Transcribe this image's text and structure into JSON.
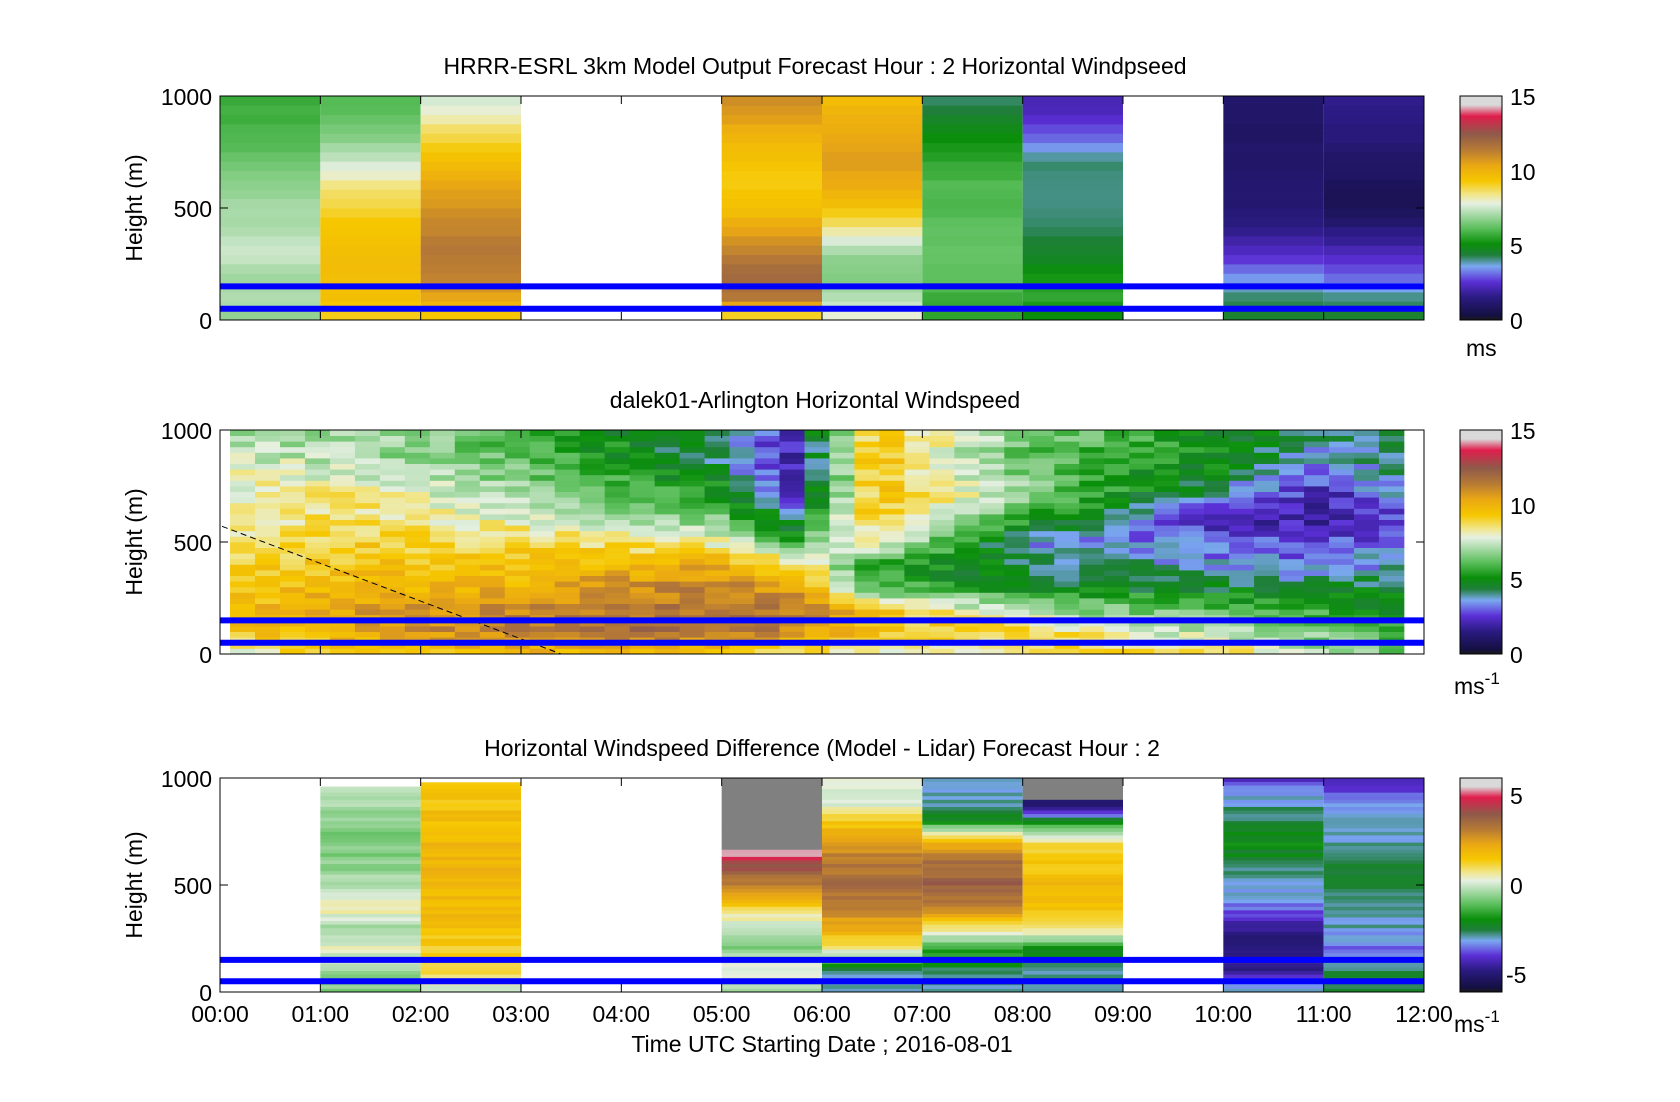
{
  "figure": {
    "xlabel": "Time UTC  Starting Date ; 2016-08-01",
    "x_ticks": [
      "00:00",
      "01:00",
      "02:00",
      "03:00",
      "04:00",
      "05:00",
      "06:00",
      "07:00",
      "08:00",
      "09:00",
      "10:00",
      "11:00",
      "12:00"
    ]
  },
  "colors": {
    "reference_lines": "#0000ff",
    "colormap": [
      "#1a1a1a",
      "#141042",
      "#2a1a80",
      "#5b2fd6",
      "#7aa8f0",
      "#1f7f3a",
      "#0a8f0a",
      "#5cbf5c",
      "#a7d9a7",
      "#e6f0e2",
      "#f1e68a",
      "#f6c700",
      "#eaa813",
      "#b77a35",
      "#8f5a4a",
      "#e01e4c",
      "#d9d9d9"
    ]
  },
  "chart_data": [
    {
      "type": "heatmap",
      "title": "HRRR-ESRL 3km Model Output   Forecast Hour : 2 Horizontal Windpseed",
      "ylabel": "Height (m)",
      "ylim": [
        0,
        1000
      ],
      "y_ticks": [
        "0",
        "500",
        "1000"
      ],
      "xlim_hours": [
        0,
        12
      ],
      "colorbar": {
        "range": [
          0,
          15
        ],
        "ticks": [
          "0",
          "5",
          "10",
          "15"
        ],
        "unit": "ms",
        "unit_sup": ""
      },
      "reference_lines_m": [
        50,
        150
      ],
      "columns": [
        {
          "start": 0,
          "end": 1,
          "profile": [
            [
              0,
              6.8
            ],
            [
              100,
              7.2
            ],
            [
              200,
              7.0
            ],
            [
              300,
              7.5
            ],
            [
              400,
              7.2
            ],
            [
              500,
              7.0
            ],
            [
              600,
              6.8
            ],
            [
              700,
              6.4
            ],
            [
              800,
              6.0
            ],
            [
              900,
              5.8
            ],
            [
              1000,
              5.7
            ]
          ]
        },
        {
          "start": 1,
          "end": 2,
          "profile": [
            [
              0,
              9.0
            ],
            [
              100,
              9.5
            ],
            [
              200,
              9.6
            ],
            [
              300,
              9.6
            ],
            [
              400,
              9.4
            ],
            [
              500,
              9.0
            ],
            [
              600,
              8.4
            ],
            [
              700,
              7.6
            ],
            [
              800,
              6.7
            ],
            [
              900,
              6.2
            ],
            [
              1000,
              6.0
            ]
          ]
        },
        {
          "start": 2,
          "end": 3,
          "profile": [
            [
              0,
              9.0
            ],
            [
              100,
              10.4
            ],
            [
              200,
              11.3
            ],
            [
              300,
              11.5
            ],
            [
              400,
              11.2
            ],
            [
              500,
              10.8
            ],
            [
              600,
              10.4
            ],
            [
              700,
              9.6
            ],
            [
              800,
              9.0
            ],
            [
              900,
              8.2
            ],
            [
              1000,
              7.5
            ]
          ]
        },
        {
          "start": 5,
          "end": 6,
          "profile": [
            [
              0,
              8.5
            ],
            [
              100,
              11.5
            ],
            [
              200,
              12.0
            ],
            [
              300,
              11.2
            ],
            [
              400,
              10.4
            ],
            [
              500,
              9.5
            ],
            [
              600,
              9.2
            ],
            [
              700,
              9.4
            ],
            [
              800,
              9.8
            ],
            [
              900,
              10.5
            ],
            [
              1000,
              11.0
            ]
          ]
        },
        {
          "start": 6,
          "end": 7,
          "profile": [
            [
              0,
              8.0
            ],
            [
              100,
              7.2
            ],
            [
              200,
              6.6
            ],
            [
              300,
              6.9
            ],
            [
              400,
              8.2
            ],
            [
              500,
              9.5
            ],
            [
              600,
              10.2
            ],
            [
              700,
              10.6
            ],
            [
              800,
              10.4
            ],
            [
              900,
              10.0
            ],
            [
              1000,
              9.6
            ]
          ]
        },
        {
          "start": 7,
          "end": 8,
          "profile": [
            [
              0,
              5.5
            ],
            [
              100,
              5.7
            ],
            [
              200,
              6.2
            ],
            [
              300,
              6.3
            ],
            [
              400,
              6.2
            ],
            [
              500,
              6.0
            ],
            [
              600,
              6.0
            ],
            [
              700,
              5.6
            ],
            [
              800,
              5.2
            ],
            [
              900,
              4.6
            ],
            [
              1000,
              4.0
            ]
          ]
        },
        {
          "start": 8,
          "end": 9,
          "profile": [
            [
              0,
              5.0
            ],
            [
              100,
              5.6
            ],
            [
              200,
              5.2
            ],
            [
              300,
              4.6
            ],
            [
              400,
              4.2
            ],
            [
              500,
              4.0
            ],
            [
              600,
              4.1
            ],
            [
              700,
              4.2
            ],
            [
              800,
              3.2
            ],
            [
              900,
              2.4
            ],
            [
              1000,
              2.0
            ]
          ]
        },
        {
          "start": 10,
          "end": 11,
          "profile": [
            [
              0,
              4.5
            ],
            [
              100,
              4.2
            ],
            [
              200,
              3.3
            ],
            [
              300,
              2.4
            ],
            [
              400,
              1.6
            ],
            [
              500,
              1.3
            ],
            [
              600,
              1.1
            ],
            [
              700,
              1.1
            ],
            [
              800,
              1.0
            ],
            [
              900,
              1.0
            ],
            [
              1000,
              1.1
            ]
          ]
        },
        {
          "start": 11,
          "end": 12,
          "profile": [
            [
              0,
              4.6
            ],
            [
              100,
              4.0
            ],
            [
              200,
              3.0
            ],
            [
              300,
              2.2
            ],
            [
              400,
              1.5
            ],
            [
              500,
              0.6
            ],
            [
              600,
              0.8
            ],
            [
              700,
              1.0
            ],
            [
              800,
              1.3
            ],
            [
              900,
              1.5
            ],
            [
              1000,
              1.7
            ]
          ]
        }
      ]
    },
    {
      "type": "heatmap",
      "title": "dalek01-Arlington  Horizontal Windspeed",
      "ylabel": "Height (m)",
      "ylim": [
        0,
        1000
      ],
      "y_ticks": [
        "0",
        "500",
        "1000"
      ],
      "xlim_hours": [
        0,
        12
      ],
      "colorbar": {
        "range": [
          0,
          15
        ],
        "ticks": [
          "0",
          "5",
          "10",
          "15"
        ],
        "unit": "ms",
        "unit_sup": "-1"
      },
      "reference_lines_m": [
        50,
        150
      ],
      "data_extent_hours": [
        0.1,
        11.8
      ],
      "data_top_m": 1000,
      "time_nodes": [
        0.1,
        1.5,
        3.0,
        4.0,
        5.0,
        5.7,
        6.5,
        8.0,
        10.0,
        11.0,
        11.8
      ],
      "height_nodes": [
        0,
        100,
        200,
        300,
        400,
        500,
        600,
        700,
        800,
        900,
        1000
      ],
      "speed_grid": [
        [
          8.0,
          9.0,
          9.5,
          9.5,
          9.0,
          8.5,
          8.0,
          8.5,
          9.0,
          7.0,
          6.5
        ],
        [
          9.5,
          10.5,
          11.5,
          12.0,
          11.8,
          11.0,
          9.5,
          9.0,
          7.0,
          6.5,
          5.5
        ],
        [
          9.5,
          10.5,
          11.0,
          11.5,
          11.8,
          11.5,
          9.5,
          7.0,
          6.0,
          5.5,
          5.0
        ],
        [
          9.5,
          9.8,
          10.0,
          10.8,
          11.2,
          10.5,
          6.0,
          4.8,
          4.5,
          4.5,
          4.5
        ],
        [
          9.0,
          9.5,
          9.5,
          10.0,
          10.0,
          9.0,
          5.5,
          4.5,
          3.5,
          3.0,
          4.0
        ],
        [
          8.5,
          9.0,
          8.8,
          8.5,
          8.0,
          5.5,
          8.5,
          3.5,
          3.0,
          2.8,
          3.0
        ],
        [
          8.5,
          8.5,
          8.0,
          7.0,
          6.5,
          4.5,
          9.0,
          5.5,
          2.0,
          2.0,
          2.5
        ],
        [
          8.0,
          8.5,
          7.0,
          6.5,
          5.5,
          2.5,
          9.5,
          7.0,
          3.5,
          2.0,
          3.5
        ],
        [
          8.0,
          7.5,
          6.5,
          5.5,
          4.5,
          2.0,
          9.5,
          6.5,
          4.5,
          3.0,
          4.0
        ],
        [
          7.5,
          7.0,
          6.0,
          5.0,
          4.0,
          2.0,
          9.5,
          6.0,
          5.0,
          3.5,
          4.5
        ],
        [
          7.0,
          7.0,
          6.0,
          5.0,
          4.5,
          2.5,
          9.0,
          7.0,
          5.0,
          4.0,
          4.5
        ]
      ],
      "dashed_line": {
        "from": {
          "time": 0.02,
          "height": 570
        },
        "to": {
          "time": 3.4,
          "height": 0
        }
      }
    },
    {
      "type": "heatmap",
      "title": "Horizontal Windspeed Difference (Model - Lidar) Forecast Hour : 2",
      "ylabel": "Height (m)",
      "ylim": [
        0,
        1000
      ],
      "y_ticks": [
        "0",
        "500",
        "1000"
      ],
      "xlim_hours": [
        0,
        12
      ],
      "colorbar": {
        "range": [
          -6,
          6
        ],
        "ticks": [
          "-5",
          "0",
          "5"
        ],
        "unit": "ms",
        "unit_sup": "-1"
      },
      "reference_lines_m": [
        50,
        150
      ],
      "columns": [
        {
          "start": 1,
          "end": 2,
          "top": 960,
          "profile": [
            [
              0,
              -0.6
            ],
            [
              100,
              -0.5
            ],
            [
              200,
              0.3
            ],
            [
              300,
              -0.4
            ],
            [
              400,
              0.6
            ],
            [
              500,
              -0.3
            ],
            [
              600,
              -0.6
            ],
            [
              700,
              -0.8
            ],
            [
              800,
              -0.5
            ],
            [
              900,
              -0.4
            ],
            [
              960,
              -0.3
            ]
          ]
        },
        {
          "start": 2,
          "end": 3,
          "top": 980,
          "profile": [
            [
              0,
              -0.3
            ],
            [
              100,
              1.0
            ],
            [
              200,
              1.3
            ],
            [
              300,
              1.6
            ],
            [
              400,
              1.8
            ],
            [
              500,
              1.9
            ],
            [
              600,
              1.9
            ],
            [
              700,
              1.8
            ],
            [
              800,
              1.7
            ],
            [
              900,
              1.5
            ],
            [
              980,
              1.4
            ]
          ]
        },
        {
          "start": 5,
          "end": 6,
          "top": 1000,
          "missing_above": 670,
          "profile": [
            [
              0,
              -0.6
            ],
            [
              100,
              0.5
            ],
            [
              200,
              -0.8
            ],
            [
              300,
              -0.2
            ],
            [
              400,
              1.3
            ],
            [
              500,
              3.0
            ],
            [
              600,
              4.2
            ],
            [
              650,
              5.5
            ],
            [
              670,
              5.6
            ]
          ]
        },
        {
          "start": 6,
          "end": 7,
          "top": 1000,
          "profile": [
            [
              0,
              -2.8
            ],
            [
              100,
              -3.0
            ],
            [
              200,
              0.5
            ],
            [
              300,
              2.2
            ],
            [
              400,
              3.0
            ],
            [
              500,
              3.5
            ],
            [
              600,
              3.2
            ],
            [
              700,
              2.5
            ],
            [
              800,
              1.3
            ],
            [
              900,
              -0.2
            ],
            [
              1000,
              0.5
            ]
          ]
        },
        {
          "start": 7,
          "end": 8,
          "top": 1000,
          "profile": [
            [
              0,
              -3.0
            ],
            [
              100,
              -2.5
            ],
            [
              200,
              -1.5
            ],
            [
              300,
              0.8
            ],
            [
              400,
              3.0
            ],
            [
              500,
              3.8
            ],
            [
              600,
              3.5
            ],
            [
              700,
              2.0
            ],
            [
              800,
              -2.0
            ],
            [
              900,
              -3.0
            ],
            [
              1000,
              -2.8
            ]
          ]
        },
        {
          "start": 8,
          "end": 9,
          "top": 1000,
          "missing_above": 900,
          "profile": [
            [
              0,
              -3.0
            ],
            [
              100,
              -2.8
            ],
            [
              200,
              -2.0
            ],
            [
              300,
              1.0
            ],
            [
              400,
              1.5
            ],
            [
              500,
              1.8
            ],
            [
              600,
              1.5
            ],
            [
              700,
              1.0
            ],
            [
              800,
              -2.0
            ],
            [
              850,
              -4.5
            ],
            [
              900,
              -5.5
            ]
          ]
        },
        {
          "start": 10,
          "end": 11,
          "top": 1000,
          "profile": [
            [
              0,
              -2.5
            ],
            [
              100,
              -4.5
            ],
            [
              200,
              -5.0
            ],
            [
              300,
              -4.5
            ],
            [
              400,
              -3.5
            ],
            [
              500,
              -3.0
            ],
            [
              600,
              -2.5
            ],
            [
              700,
              -2.0
            ],
            [
              800,
              -2.5
            ],
            [
              900,
              -3.0
            ],
            [
              1000,
              -4.0
            ]
          ]
        },
        {
          "start": 11,
          "end": 12,
          "top": 1000,
          "profile": [
            [
              0,
              -2.5
            ],
            [
              100,
              -2.5
            ],
            [
              200,
              -3.5
            ],
            [
              300,
              -3.0
            ],
            [
              400,
              -2.8
            ],
            [
              500,
              -2.5
            ],
            [
              600,
              -2.5
            ],
            [
              700,
              -3.0
            ],
            [
              800,
              -3.0
            ],
            [
              900,
              -3.5
            ],
            [
              1000,
              -4.5
            ]
          ]
        }
      ]
    }
  ]
}
